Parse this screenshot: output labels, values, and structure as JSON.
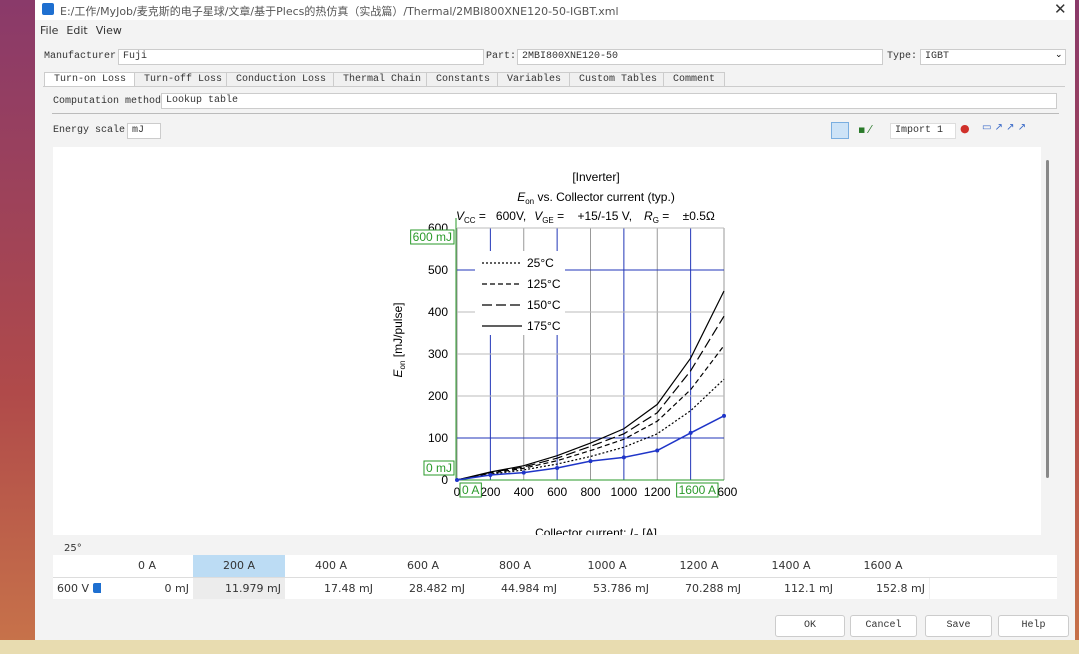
{
  "window": {
    "title": "E:/工作/MyJob/麦克斯的电子星球/文章/基于Plecs的热仿真（实战篇）/Thermal/2MBI800XNE120-50-IGBT.xml"
  },
  "menu": [
    "File",
    "Edit",
    "View"
  ],
  "fields": {
    "manufacturer_label": "Manufacturer:",
    "manufacturer": "Fuji",
    "part_label": "Part:",
    "part": "2MBI800XNE120-50",
    "type_label": "Type:",
    "type": "IGBT"
  },
  "tabs": [
    "Turn-on Loss",
    "Turn-off Loss",
    "Conduction Loss",
    "Thermal Chain",
    "Constants",
    "Variables",
    "Custom Tables",
    "Comment"
  ],
  "computation": {
    "label": "Computation method:",
    "value": "Lookup table"
  },
  "energy_scale": {
    "label": "Energy scale:",
    "value": "mJ"
  },
  "toolbar": {
    "import": "Import 1"
  },
  "plot": {
    "title": "[Inverter]",
    "subtitle": [
      "E",
      "on",
      " vs. Collector current  (typ.)"
    ],
    "conditions": [
      "V",
      "CC",
      " =   600V,",
      "V",
      "GE",
      " =    +15/-15 V,",
      "R",
      "G",
      " =    ±0.5Ω"
    ],
    "ylabel": [
      "E",
      "on",
      " [mJ/pulse]"
    ],
    "xlabel": [
      "Collector current: ",
      "I",
      "C",
      " [A]"
    ],
    "xlim": [
      0,
      1600
    ],
    "ylim": [
      0,
      600
    ],
    "xticks": [
      0,
      200,
      400,
      600,
      800,
      1000,
      1200,
      1400,
      1600
    ],
    "yticks": [
      0,
      100,
      200,
      300,
      400,
      500,
      600
    ],
    "overlay_labels": {
      "ymax": "600 mJ",
      "ymin": "0 mJ",
      "xmin": "0 A",
      "xmax": "1600 A"
    },
    "x": [
      0,
      200,
      400,
      600,
      800,
      1000,
      1200,
      1400,
      1600
    ],
    "series": [
      {
        "name": "25°C",
        "dash": "2,2",
        "values": [
          0,
          14,
          24,
          38,
          56,
          78,
          110,
          165,
          240
        ]
      },
      {
        "name": "125°C",
        "dash": "5,3",
        "values": [
          0,
          16,
          28,
          46,
          70,
          97,
          140,
          215,
          320
        ]
      },
      {
        "name": "150°C",
        "dash": "10,4",
        "values": [
          0,
          18,
          31,
          52,
          80,
          110,
          160,
          260,
          390
        ]
      },
      {
        "name": "175°C",
        "dash": "none",
        "values": [
          0,
          19,
          34,
          58,
          88,
          122,
          180,
          290,
          450
        ]
      }
    ],
    "digitized": {
      "color": "#1f35c8",
      "values": [
        0,
        11.979,
        17.48,
        28.482,
        44.984,
        53.786,
        70.288,
        112.1,
        152.8
      ]
    }
  },
  "table": {
    "temperature": "25°",
    "selected_column": 1,
    "columns": [
      "0 A",
      "200 A",
      "400 A",
      "600 A",
      "800 A",
      "1000 A",
      "1200 A",
      "1400 A",
      "1600 A"
    ],
    "rows": [
      {
        "label": "600 V",
        "values": [
          "0 mJ",
          "11.979 mJ",
          "17.48 mJ",
          "28.482 mJ",
          "44.984 mJ",
          "53.786 mJ",
          "70.288 mJ",
          "112.1 mJ",
          "152.8 mJ"
        ]
      }
    ]
  },
  "buttons": [
    "OK",
    "Cancel",
    "Save",
    "Help"
  ]
}
